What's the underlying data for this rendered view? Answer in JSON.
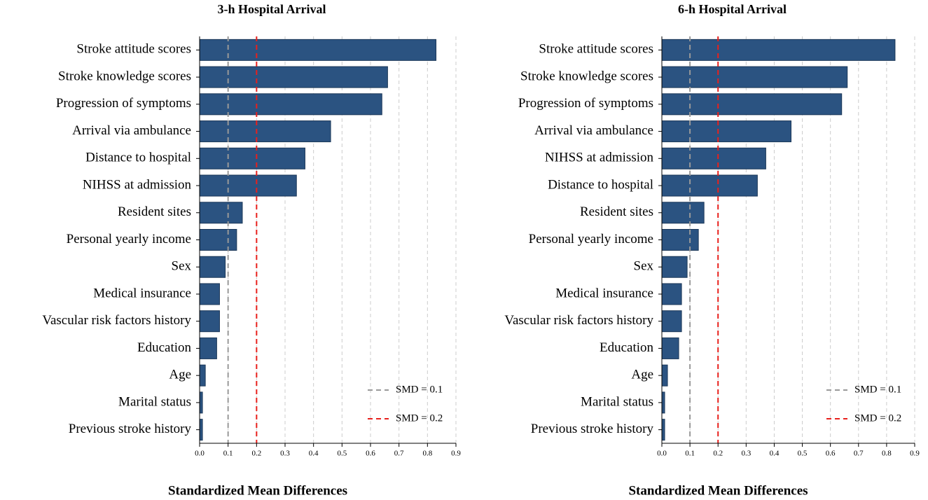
{
  "chart_data": [
    {
      "type": "barh",
      "title": "3-h Hospital Arrival",
      "xlabel": "Standardized Mean Differences",
      "categories": [
        "Stroke attitude scores",
        "Stroke knowledge scores",
        "Progression of symptoms",
        "Arrival via ambulance",
        "Distance to hospital",
        "NIHSS at admission",
        "Resident sites",
        "Personal yearly income",
        "Sex",
        "Medical insurance",
        "Vascular risk factors history",
        "Education",
        "Age",
        "Marital status",
        "Previous stroke history"
      ],
      "values": [
        0.83,
        0.66,
        0.64,
        0.46,
        0.37,
        0.34,
        0.15,
        0.13,
        0.09,
        0.07,
        0.07,
        0.06,
        0.02,
        0.01,
        0.01
      ],
      "color": "#2b5381",
      "xlim": [
        0,
        0.9
      ],
      "xticks": [
        {
          "value": 0,
          "label": "0.0"
        },
        0.1,
        0.2,
        0.3,
        0.4,
        0.5,
        0.6,
        0.7,
        0.8,
        0.9
      ],
      "grid": true,
      "reference_lines": [
        {
          "value": 0.1,
          "label": "SMD = 0.1",
          "color": "#999999"
        },
        {
          "value": 0.2,
          "label": "SMD = 0.2",
          "color": "#e8201c"
        }
      ],
      "legend": "lower right"
    },
    {
      "type": "barh",
      "title": "6-h Hospital Arrival",
      "xlabel": "Standardized Mean Differences",
      "categories": [
        "Stroke attitude scores",
        "Stroke knowledge scores",
        "Progression of symptoms",
        "Arrival via ambulance",
        "NIHSS at admission",
        "Distance to hospital",
        "Resident sites",
        "Personal yearly income",
        "Sex",
        "Medical insurance",
        "Vascular risk factors history",
        "Education",
        "Age",
        "Marital status",
        "Previous stroke history"
      ],
      "values": [
        0.83,
        0.66,
        0.64,
        0.46,
        0.37,
        0.34,
        0.15,
        0.13,
        0.09,
        0.07,
        0.07,
        0.06,
        0.02,
        0.01,
        0.01
      ],
      "color": "#2b5381",
      "xlim": [
        0,
        0.9
      ],
      "xticks": [
        {
          "value": 0,
          "label": "0.0"
        },
        0.1,
        0.2,
        0.3,
        0.4,
        0.5,
        0.6,
        0.7,
        0.8,
        0.9
      ],
      "grid": true,
      "reference_lines": [
        {
          "value": 0.1,
          "label": "SMD = 0.1",
          "color": "#999999"
        },
        {
          "value": 0.2,
          "label": "SMD = 0.2",
          "color": "#e8201c"
        }
      ],
      "legend": "lower right"
    }
  ]
}
